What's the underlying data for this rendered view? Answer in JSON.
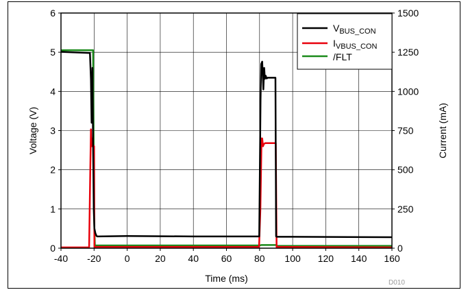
{
  "chart_data": {
    "type": "line",
    "xlabel": "Time (ms)",
    "ylabel_left": "Voltage (V)",
    "ylabel_right": "Current (mA)",
    "xlim": [
      -40,
      160
    ],
    "ylim_left": [
      0,
      6
    ],
    "ylim_right": [
      0,
      1500
    ],
    "x_ticks": [
      -40,
      -20,
      0,
      20,
      40,
      60,
      80,
      100,
      120,
      140,
      160
    ],
    "y_ticks_left": [
      0,
      1,
      2,
      3,
      4,
      5,
      6
    ],
    "y_ticks_right": [
      0,
      250,
      500,
      750,
      1000,
      1250,
      1500
    ],
    "grid": true,
    "legend_position": "top-right",
    "watermark": "D010",
    "colors": {
      "vbus": "#000000",
      "ivbus": "#e8000b",
      "flt": "#1a8a1a"
    },
    "series": [
      {
        "name": "VBUS_CON",
        "legend_main": "V",
        "legend_sub": "BUS_CON",
        "axis": "left",
        "x": [
          -40,
          -22.5,
          -21.9,
          -21.5,
          -21.0,
          -20.6,
          -20.2,
          -19.8,
          -19.2,
          -18.5,
          -18.0,
          0,
          40,
          79.8,
          80.6,
          81.0,
          81.6,
          82.3,
          82.8,
          83.2,
          83.7,
          84.3,
          85.0,
          89.6,
          90.0,
          90.4,
          100,
          160
        ],
        "y": [
          5.01,
          4.98,
          4.3,
          3.2,
          4.6,
          2.6,
          1.0,
          0.5,
          0.38,
          0.31,
          0.3,
          0.31,
          0.3,
          0.3,
          3.8,
          4.7,
          4.76,
          4.05,
          4.6,
          4.32,
          4.4,
          4.33,
          4.35,
          4.35,
          0.3,
          0.29,
          0.29,
          0.28
        ]
      },
      {
        "name": "IVBUS_CON",
        "legend_main": "I",
        "legend_sub": "VBUS_CON",
        "axis": "right",
        "x": [
          -40,
          -23.0,
          -22.3,
          -21.9,
          -21.6,
          -21.3,
          -21.0,
          -20.7,
          -20.0,
          -19.8,
          -19.0,
          79.7,
          80.5,
          81.2,
          81.6,
          82.1,
          82.6,
          83.5,
          89.8,
          90.3,
          91.0,
          160
        ],
        "y": [
          5,
          5,
          500,
          758,
          650,
          700,
          650,
          660,
          650,
          5,
          8,
          8,
          250,
          700,
          700,
          650,
          665,
          670,
          670,
          5,
          8,
          5
        ]
      },
      {
        "name": "/FLT",
        "legend_main": "/FLT",
        "legend_sub": "",
        "axis": "left",
        "x": [
          -40,
          -20.6,
          -20.0,
          -19.5,
          80,
          81,
          90,
          90.5,
          160
        ],
        "y": [
          5.05,
          5.05,
          0.8,
          0.07,
          0.07,
          0.08,
          0.08,
          0.06,
          0.06
        ]
      }
    ]
  }
}
